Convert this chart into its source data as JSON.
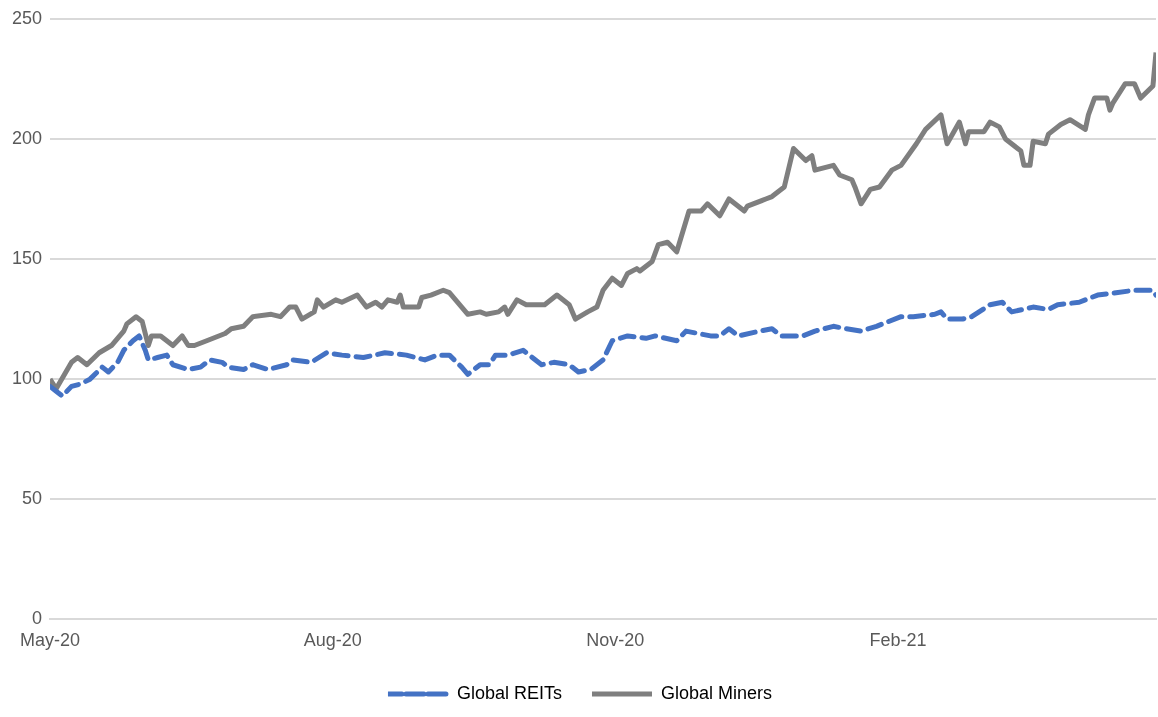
{
  "chart_data": {
    "type": "line",
    "xlim": [
      "2020-05-01",
      "2021-04-26"
    ],
    "xticks": [
      {
        "value": "2020-05-01",
        "label": "May-20"
      },
      {
        "value": "2020-08-01",
        "label": "Aug-20"
      },
      {
        "value": "2020-11-01",
        "label": "Nov-20"
      },
      {
        "value": "2021-02-01",
        "label": "Feb-21"
      }
    ],
    "ylim": [
      0,
      250
    ],
    "yticks": [
      0,
      50,
      100,
      150,
      200,
      250
    ],
    "grid": "y",
    "legend": "bottom",
    "marker": "none",
    "series": [
      {
        "name": "Global REITs",
        "color": "#4472c4",
        "line_style": "dashed",
        "x": [
          "2020-05-01",
          "2020-05-03",
          "2020-05-05",
          "2020-05-08",
          "2020-05-11",
          "2020-05-14",
          "2020-05-18",
          "2020-05-20",
          "2020-05-23",
          "2020-05-25",
          "2020-05-28",
          "2020-05-30",
          "2020-06-01",
          "2020-06-02",
          "2020-06-05",
          "2020-06-08",
          "2020-06-10",
          "2020-06-15",
          "2020-06-19",
          "2020-06-22",
          "2020-06-26",
          "2020-06-28",
          "2020-07-03",
          "2020-07-06",
          "2020-07-11",
          "2020-07-17",
          "2020-07-19",
          "2020-07-25",
          "2020-07-30",
          "2020-08-04",
          "2020-08-11",
          "2020-08-18",
          "2020-08-25",
          "2020-08-31",
          "2020-09-04",
          "2020-09-08",
          "2020-09-12",
          "2020-09-14",
          "2020-09-18",
          "2020-09-21",
          "2020-09-23",
          "2020-09-27",
          "2020-10-02",
          "2020-10-08",
          "2020-10-12",
          "2020-10-17",
          "2020-10-20",
          "2020-10-24",
          "2020-10-28",
          "2020-10-31",
          "2020-11-05",
          "2020-11-11",
          "2020-11-14",
          "2020-11-21",
          "2020-11-24",
          "2020-12-02",
          "2020-12-05",
          "2020-12-08",
          "2020-12-11",
          "2020-12-18",
          "2020-12-22",
          "2020-12-25",
          "2020-12-29",
          "2021-01-01",
          "2021-01-05",
          "2021-01-11",
          "2021-01-15",
          "2021-01-20",
          "2021-01-25",
          "2021-02-02",
          "2021-02-06",
          "2021-02-13",
          "2021-02-15",
          "2021-02-17",
          "2021-02-22",
          "2021-02-25",
          "2021-03-03",
          "2021-03-07",
          "2021-03-10",
          "2021-03-17",
          "2021-03-22",
          "2021-03-25",
          "2021-04-01",
          "2021-04-05",
          "2021-04-07",
          "2021-04-13",
          "2021-04-19",
          "2021-04-25",
          "2021-04-26"
        ],
        "values": [
          97,
          95,
          93,
          97,
          98,
          100,
          105,
          103,
          107,
          112,
          116,
          118,
          112,
          108,
          109,
          110,
          106,
          104,
          105,
          108,
          107,
          105,
          104,
          106,
          104,
          106,
          108,
          107,
          111,
          110,
          109,
          111,
          110,
          108,
          110,
          110,
          105,
          102,
          106,
          106,
          110,
          110,
          112,
          106,
          107,
          106,
          103,
          104,
          108,
          116,
          118,
          117,
          118,
          116,
          120,
          118,
          118,
          121,
          118,
          120,
          121,
          118,
          118,
          118,
          120,
          122,
          121,
          120,
          122,
          126,
          126,
          127,
          128,
          125,
          125,
          126,
          131,
          132,
          128,
          130,
          129,
          131,
          132,
          134,
          135,
          136,
          137,
          137,
          135
        ]
      },
      {
        "name": "Global Miners",
        "color": "#7f7f7f",
        "line_style": "solid",
        "x": [
          "2020-05-01",
          "2020-05-03",
          "2020-05-08",
          "2020-05-10",
          "2020-05-13",
          "2020-05-17",
          "2020-05-21",
          "2020-05-25",
          "2020-05-26",
          "2020-05-29",
          "2020-05-31",
          "2020-06-02",
          "2020-06-03",
          "2020-06-06",
          "2020-06-10",
          "2020-06-13",
          "2020-06-15",
          "2020-06-17",
          "2020-06-21",
          "2020-06-27",
          "2020-06-29",
          "2020-07-03",
          "2020-07-06",
          "2020-07-12",
          "2020-07-15",
          "2020-07-18",
          "2020-07-20",
          "2020-07-22",
          "2020-07-26",
          "2020-07-27",
          "2020-07-29",
          "2020-08-02",
          "2020-08-04",
          "2020-08-09",
          "2020-08-12",
          "2020-08-15",
          "2020-08-17",
          "2020-08-19",
          "2020-08-22",
          "2020-08-23",
          "2020-08-24",
          "2020-08-29",
          "2020-08-30",
          "2020-09-02",
          "2020-09-06",
          "2020-09-08",
          "2020-09-14",
          "2020-09-18",
          "2020-09-20",
          "2020-09-24",
          "2020-09-26",
          "2020-09-27",
          "2020-09-30",
          "2020-10-03",
          "2020-10-09",
          "2020-10-13",
          "2020-10-17",
          "2020-10-19",
          "2020-10-23",
          "2020-10-26",
          "2020-10-28",
          "2020-10-31",
          "2020-11-03",
          "2020-11-05",
          "2020-11-08",
          "2020-11-09",
          "2020-11-13",
          "2020-11-15",
          "2020-11-18",
          "2020-11-21",
          "2020-11-25",
          "2020-11-29",
          "2020-12-01",
          "2020-12-05",
          "2020-12-08",
          "2020-12-13",
          "2020-12-14",
          "2020-12-20",
          "2020-12-22",
          "2020-12-26",
          "2020-12-29",
          "2021-01-02",
          "2021-01-04",
          "2021-01-05",
          "2021-01-11",
          "2021-01-13",
          "2021-01-17",
          "2021-01-18",
          "2021-01-20",
          "2021-01-23",
          "2021-01-26",
          "2021-01-30",
          "2021-02-02",
          "2021-02-07",
          "2021-02-10",
          "2021-02-15",
          "2021-02-17",
          "2021-02-21",
          "2021-02-23",
          "2021-02-24",
          "2021-03-01",
          "2021-03-03",
          "2021-03-06",
          "2021-03-08",
          "2021-03-13",
          "2021-03-14",
          "2021-03-16",
          "2021-03-17",
          "2021-03-21",
          "2021-03-22",
          "2021-03-26",
          "2021-03-29",
          "2021-04-03",
          "2021-04-04",
          "2021-04-06",
          "2021-04-10",
          "2021-04-11",
          "2021-04-12",
          "2021-04-16",
          "2021-04-19",
          "2021-04-21",
          "2021-04-25",
          "2021-04-26"
        ],
        "values": [
          100,
          96,
          107,
          109,
          106,
          111,
          114,
          120,
          123,
          126,
          124,
          114,
          118,
          118,
          114,
          118,
          114,
          114,
          116,
          119,
          121,
          122,
          126,
          127,
          126,
          130,
          130,
          125,
          128,
          133,
          130,
          133,
          132,
          135,
          130,
          132,
          130,
          133,
          132,
          135,
          130,
          130,
          134,
          135,
          137,
          136,
          127,
          128,
          127,
          128,
          130,
          127,
          133,
          131,
          131,
          135,
          131,
          125,
          128,
          130,
          137,
          142,
          139,
          144,
          146,
          145,
          149,
          156,
          157,
          153,
          170,
          170,
          173,
          168,
          175,
          170,
          172,
          175,
          176,
          180,
          196,
          191,
          193,
          187,
          189,
          185,
          183,
          180,
          173,
          179,
          180,
          187,
          189,
          198,
          204,
          210,
          198,
          207,
          198,
          203,
          203,
          207,
          205,
          200,
          195,
          189,
          189,
          199,
          198,
          202,
          206,
          208,
          204,
          210,
          217,
          217,
          212,
          215,
          223,
          223,
          217,
          222,
          236
        ]
      }
    ]
  }
}
